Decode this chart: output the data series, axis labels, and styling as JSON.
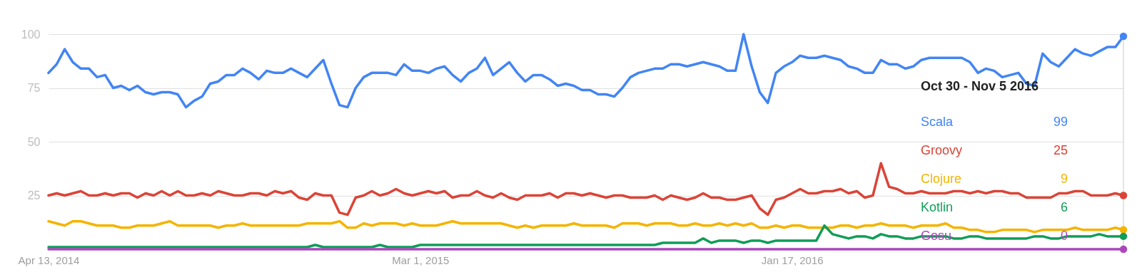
{
  "chart_data": {
    "type": "line",
    "x": [
      "2014-04-13",
      "2014-04-20",
      "2014-04-27",
      "2014-05-04",
      "2014-05-11",
      "2014-05-18",
      "2014-05-25",
      "2014-06-01",
      "2014-06-08",
      "2014-06-15",
      "2014-06-22",
      "2014-06-29",
      "2014-07-06",
      "2014-07-13",
      "2014-07-20",
      "2014-07-27",
      "2014-08-03",
      "2014-08-10",
      "2014-08-17",
      "2014-08-24",
      "2014-08-31",
      "2014-09-07",
      "2014-09-14",
      "2014-09-21",
      "2014-09-28",
      "2014-10-05",
      "2014-10-12",
      "2014-10-19",
      "2014-10-26",
      "2014-11-02",
      "2014-11-09",
      "2014-11-16",
      "2014-11-23",
      "2014-11-30",
      "2014-12-07",
      "2014-12-14",
      "2014-12-21",
      "2014-12-28",
      "2015-01-04",
      "2015-01-11",
      "2015-01-18",
      "2015-01-25",
      "2015-02-01",
      "2015-02-08",
      "2015-02-15",
      "2015-02-22",
      "2015-03-01",
      "2015-03-08",
      "2015-03-15",
      "2015-03-22",
      "2015-03-29",
      "2015-04-05",
      "2015-04-12",
      "2015-04-19",
      "2015-04-26",
      "2015-05-03",
      "2015-05-10",
      "2015-05-17",
      "2015-05-24",
      "2015-05-31",
      "2015-06-07",
      "2015-06-14",
      "2015-06-21",
      "2015-06-28",
      "2015-07-05",
      "2015-07-12",
      "2015-07-19",
      "2015-07-26",
      "2015-08-02",
      "2015-08-09",
      "2015-08-16",
      "2015-08-23",
      "2015-08-30",
      "2015-09-06",
      "2015-09-13",
      "2015-09-20",
      "2015-09-27",
      "2015-10-04",
      "2015-10-11",
      "2015-10-18",
      "2015-10-25",
      "2015-11-01",
      "2015-11-08",
      "2015-11-15",
      "2015-11-22",
      "2015-11-29",
      "2015-12-06",
      "2015-12-13",
      "2015-12-20",
      "2015-12-27",
      "2016-01-03",
      "2016-01-10",
      "2016-01-17",
      "2016-01-24",
      "2016-01-31",
      "2016-02-07",
      "2016-02-14",
      "2016-02-21",
      "2016-02-28",
      "2016-03-06",
      "2016-03-13",
      "2016-03-20",
      "2016-03-27",
      "2016-04-03",
      "2016-04-10",
      "2016-04-17",
      "2016-04-24",
      "2016-05-01",
      "2016-05-08",
      "2016-05-15",
      "2016-05-22",
      "2016-05-29",
      "2016-06-05",
      "2016-06-12",
      "2016-06-19",
      "2016-06-26",
      "2016-07-03",
      "2016-07-10",
      "2016-07-17",
      "2016-07-24",
      "2016-07-31",
      "2016-08-07",
      "2016-08-14",
      "2016-08-21",
      "2016-08-28",
      "2016-09-04",
      "2016-09-11",
      "2016-09-18",
      "2016-09-25",
      "2016-10-02",
      "2016-10-09",
      "2016-10-16",
      "2016-10-23",
      "2016-10-30"
    ],
    "xlim": [
      "2014-04-13",
      "2016-10-30"
    ],
    "xticks": [
      {
        "value": "2014-04-13",
        "label": "Apr 13, 2014"
      },
      {
        "value": "2015-03-01",
        "label": "Mar 1, 2015"
      },
      {
        "value": "2016-01-17",
        "label": "Jan 17, 2016"
      }
    ],
    "ylim": [
      0,
      100
    ],
    "yticks": [
      25,
      50,
      75,
      100
    ],
    "grid": "y",
    "legend": "right",
    "legend_title": "Oct 30 - Nov 5 2016",
    "series": [
      {
        "name": "Scala",
        "color": "#4285f4",
        "values": [
          82,
          86,
          93,
          87,
          84,
          84,
          80,
          81,
          75,
          76,
          74,
          76,
          73,
          72,
          73,
          73,
          72,
          66,
          69,
          71,
          77,
          78,
          81,
          81,
          84,
          82,
          79,
          83,
          82,
          82,
          84,
          82,
          80,
          84,
          88,
          77,
          67,
          66,
          75,
          80,
          82,
          82,
          82,
          81,
          86,
          83,
          83,
          82,
          84,
          85,
          81,
          78,
          82,
          84,
          89,
          81,
          84,
          87,
          82,
          78,
          81,
          81,
          79,
          76,
          77,
          76,
          74,
          74,
          72,
          72,
          71,
          75,
          80,
          82,
          83,
          84,
          84,
          86,
          86,
          85,
          86,
          87,
          86,
          85,
          83,
          83,
          100,
          85,
          73,
          68,
          82,
          85,
          87,
          90,
          89,
          89,
          90,
          89,
          88,
          85,
          84,
          82,
          82,
          88,
          86,
          86,
          84,
          85,
          88,
          89,
          89,
          89,
          89,
          89,
          87,
          82,
          84,
          83,
          80,
          81,
          82,
          77,
          76,
          91,
          87,
          85,
          89,
          93,
          91,
          90,
          92,
          94,
          94,
          99
        ]
      },
      {
        "name": "Groovy",
        "color": "#db4437",
        "values": [
          25,
          26,
          25,
          26,
          27,
          25,
          25,
          26,
          25,
          26,
          26,
          24,
          26,
          25,
          27,
          25,
          27,
          25,
          25,
          26,
          25,
          27,
          26,
          25,
          25,
          26,
          26,
          25,
          27,
          26,
          27,
          24,
          23,
          26,
          25,
          25,
          17,
          16,
          24,
          25,
          27,
          25,
          26,
          28,
          26,
          25,
          26,
          27,
          26,
          27,
          24,
          25,
          25,
          27,
          25,
          24,
          26,
          24,
          23,
          25,
          25,
          25,
          26,
          24,
          26,
          26,
          25,
          26,
          25,
          24,
          25,
          25,
          24,
          24,
          24,
          25,
          23,
          25,
          24,
          23,
          24,
          26,
          24,
          24,
          23,
          23,
          24,
          25,
          19,
          16,
          23,
          24,
          26,
          28,
          26,
          26,
          27,
          27,
          28,
          26,
          27,
          24,
          25,
          40,
          29,
          28,
          26,
          26,
          27,
          26,
          26,
          26,
          27,
          27,
          26,
          27,
          26,
          27,
          27,
          26,
          26,
          24,
          24,
          24,
          24,
          26,
          26,
          27,
          27,
          25,
          25,
          25,
          26,
          25
        ]
      },
      {
        "name": "Clojure",
        "color": "#f4b400",
        "values": [
          13,
          12,
          11,
          13,
          13,
          12,
          11,
          11,
          11,
          10,
          10,
          11,
          11,
          11,
          12,
          13,
          11,
          11,
          11,
          11,
          11,
          10,
          11,
          11,
          12,
          11,
          11,
          11,
          11,
          11,
          11,
          11,
          12,
          12,
          12,
          12,
          13,
          10,
          10,
          12,
          11,
          12,
          12,
          12,
          11,
          12,
          11,
          11,
          11,
          12,
          13,
          12,
          12,
          12,
          12,
          12,
          12,
          11,
          10,
          11,
          10,
          11,
          11,
          11,
          11,
          12,
          11,
          11,
          11,
          11,
          10,
          12,
          12,
          12,
          11,
          12,
          12,
          12,
          11,
          11,
          12,
          11,
          11,
          12,
          11,
          12,
          11,
          12,
          10,
          10,
          11,
          10,
          11,
          11,
          10,
          10,
          10,
          10,
          11,
          11,
          10,
          11,
          11,
          12,
          11,
          11,
          11,
          10,
          11,
          11,
          11,
          12,
          10,
          10,
          9,
          9,
          8,
          8,
          9,
          9,
          9,
          9,
          8,
          9,
          9,
          9,
          9,
          10,
          9,
          9,
          9,
          9,
          10,
          9
        ]
      },
      {
        "name": "Kotlin",
        "color": "#0f9d58",
        "values": [
          1,
          1,
          1,
          1,
          1,
          1,
          1,
          1,
          1,
          1,
          1,
          1,
          1,
          1,
          1,
          1,
          1,
          1,
          1,
          1,
          1,
          1,
          1,
          1,
          1,
          1,
          1,
          1,
          1,
          1,
          1,
          1,
          1,
          2,
          1,
          1,
          1,
          1,
          1,
          1,
          1,
          2,
          1,
          1,
          1,
          1,
          2,
          2,
          2,
          2,
          2,
          2,
          2,
          2,
          2,
          2,
          2,
          2,
          2,
          2,
          2,
          2,
          2,
          2,
          2,
          2,
          2,
          2,
          2,
          2,
          2,
          2,
          2,
          2,
          2,
          2,
          3,
          3,
          3,
          3,
          3,
          5,
          3,
          4,
          4,
          4,
          3,
          4,
          4,
          3,
          4,
          4,
          4,
          4,
          4,
          4,
          11,
          7,
          6,
          5,
          6,
          6,
          5,
          7,
          6,
          6,
          5,
          5,
          6,
          6,
          6,
          6,
          5,
          5,
          6,
          6,
          5,
          5,
          5,
          5,
          5,
          5,
          6,
          6,
          5,
          5,
          6,
          6,
          6,
          6,
          7,
          6,
          6,
          6
        ]
      },
      {
        "name": "Gosu",
        "color": "#ab47bc",
        "values": [
          0,
          0,
          0,
          0,
          0,
          0,
          0,
          0,
          0,
          0,
          0,
          0,
          0,
          0,
          0,
          0,
          0,
          0,
          0,
          0,
          0,
          0,
          0,
          0,
          0,
          0,
          0,
          0,
          0,
          0,
          0,
          0,
          0,
          0,
          0,
          0,
          0,
          0,
          0,
          0,
          0,
          0,
          0,
          0,
          0,
          0,
          0,
          0,
          0,
          0,
          0,
          0,
          0,
          0,
          0,
          0,
          0,
          0,
          0,
          0,
          0,
          0,
          0,
          0,
          0,
          0,
          0,
          0,
          0,
          0,
          0,
          0,
          0,
          0,
          0,
          0,
          0,
          0,
          0,
          0,
          0,
          0,
          0,
          0,
          0,
          0,
          0,
          0,
          0,
          0,
          0,
          0,
          0,
          0,
          0,
          0,
          0,
          0,
          0,
          0,
          0,
          0,
          0,
          0,
          0,
          0,
          0,
          0,
          0,
          0,
          0,
          0,
          0,
          0,
          0,
          0,
          0,
          0,
          0,
          0,
          0,
          0,
          0,
          0,
          0,
          0,
          0,
          0,
          0,
          0,
          0,
          0,
          0,
          0
        ]
      }
    ],
    "annotations": [
      "99",
      "25",
      "9",
      "6",
      "0"
    ],
    "ref_lines": [
      {
        "axis": "x",
        "value": "2016-10-30",
        "color": "#dadce0"
      }
    ]
  }
}
